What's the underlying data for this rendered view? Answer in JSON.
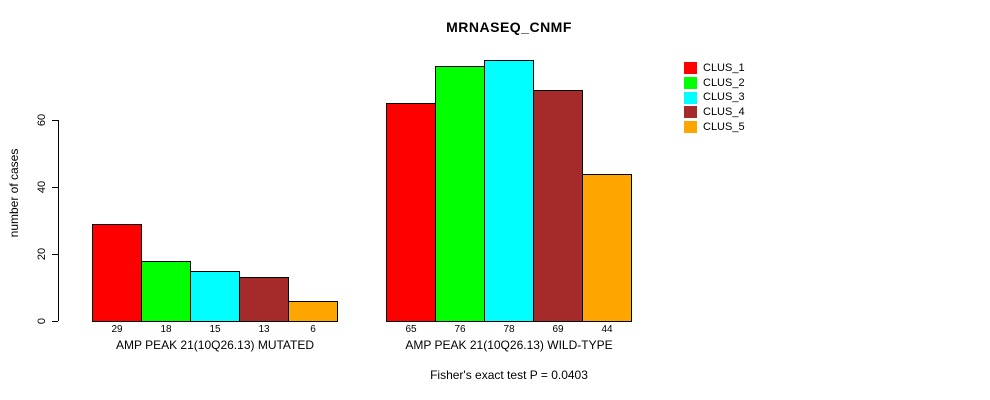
{
  "chart_data": {
    "type": "bar",
    "title": "MRNASEQ_CNMF",
    "xlabel": "",
    "ylabel": "number of cases",
    "ylim": [
      0,
      80
    ],
    "yticks": [
      0,
      20,
      40,
      60
    ],
    "grid": false,
    "legend_position": "right",
    "bar_value_labels": true,
    "categories": [
      "AMP PEAK 21(10Q26.13) MUTATED",
      "AMP PEAK 21(10Q26.13) WILD-TYPE"
    ],
    "series": [
      {
        "name": "CLUS_1",
        "color": "#FF0000",
        "values": [
          29,
          65
        ]
      },
      {
        "name": "CLUS_2",
        "color": "#00FF00",
        "values": [
          18,
          76
        ]
      },
      {
        "name": "CLUS_3",
        "color": "#00FFFF",
        "values": [
          15,
          78
        ]
      },
      {
        "name": "CLUS_4",
        "color": "#A52A2A",
        "values": [
          13,
          69
        ]
      },
      {
        "name": "CLUS_5",
        "color": "#FFA500",
        "values": [
          6,
          44
        ]
      }
    ],
    "annotation": "Fisher's exact test P = 0.0403"
  },
  "colors": {
    "background": "#FFFFFF",
    "axis": "#000000",
    "text": "#000000"
  }
}
